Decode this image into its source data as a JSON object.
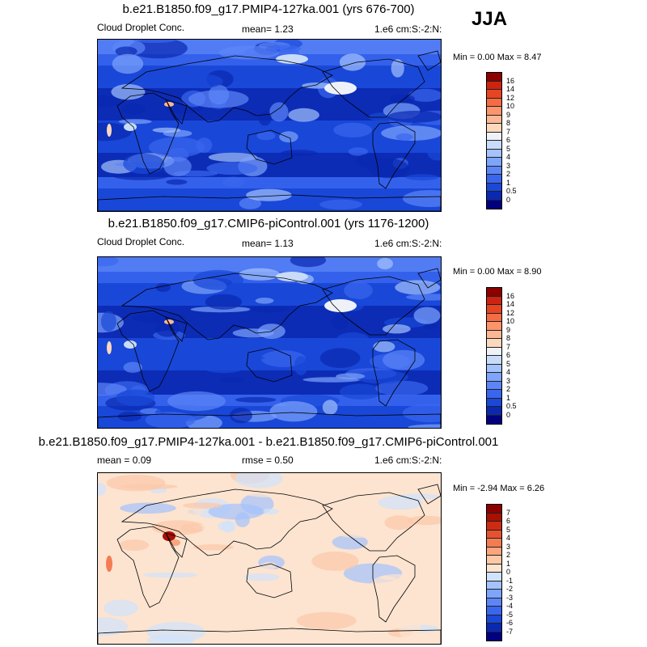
{
  "season": "JJA",
  "panels": [
    {
      "title": "b.e21.B1850.f09_g17.PMIP4-127ka.001 (yrs 676-700)",
      "left": "Cloud Droplet Conc.",
      "mean": "mean=   1.23",
      "units": "1.e6 cm:S:-2:N:",
      "minmax": "Min =   0.00 Max =   8.47",
      "kind": "abs",
      "seed": 7
    },
    {
      "title": "b.e21.B1850.f09_g17.CMIP6-piControl.001 (yrs 1176-1200)",
      "left": "Cloud Droplet Conc.",
      "mean": "mean=   1.13",
      "units": "1.e6 cm:S:-2:N:",
      "minmax": "Min =   0.00 Max =   8.90",
      "kind": "abs",
      "seed": 11
    },
    {
      "title": "b.e21.B1850.f09_g17.PMIP4-127ka.001 - b.e21.B1850.f09_g17.CMIP6-piControl.001",
      "left": "mean =   0.09",
      "mean": "rmse =   0.50",
      "units": "1.e6 cm:S:-2:N:",
      "minmax": "Min =  -2.94 Max =   6.26",
      "kind": "diff",
      "seed": 3
    }
  ],
  "chart_data": [
    {
      "type": "heatmap",
      "title": "b.e21.B1850.f09_g17.PMIP4-127ka.001 (yrs 676-700)",
      "variable": "Cloud Droplet Conc.",
      "units": "1.e6 cm:S:-2:N:",
      "mean": 1.23,
      "min": 0.0,
      "max": 8.47,
      "colorbar_levels": [
        0,
        0.5,
        1,
        2,
        3,
        4,
        5,
        6,
        7,
        8,
        9,
        10,
        12,
        14,
        16
      ],
      "colorbar_labels": [
        "16",
        "14",
        "12",
        "10",
        "9",
        "8",
        "7",
        "6",
        "5",
        "4",
        "3",
        "2",
        "1",
        "0.5",
        "0"
      ],
      "colors": [
        "#000080",
        "#0a28b0",
        "#1a48d8",
        "#3a66ee",
        "#5c86f8",
        "#7ea4fc",
        "#a4c2fc",
        "#c8dcfa",
        "#eef2f8",
        "#fcd8bc",
        "#fcb894",
        "#fc946c",
        "#f46c44",
        "#e64422",
        "#cc2410",
        "#8c0000"
      ]
    },
    {
      "type": "heatmap",
      "title": "b.e21.B1850.f09_g17.CMIP6-piControl.001 (yrs 1176-1200)",
      "variable": "Cloud Droplet Conc.",
      "units": "1.e6 cm:S:-2:N:",
      "mean": 1.13,
      "min": 0.0,
      "max": 8.9,
      "colorbar_levels": [
        0,
        0.5,
        1,
        2,
        3,
        4,
        5,
        6,
        7,
        8,
        9,
        10,
        12,
        14,
        16
      ],
      "colorbar_labels": [
        "16",
        "14",
        "12",
        "10",
        "9",
        "8",
        "7",
        "6",
        "5",
        "4",
        "3",
        "2",
        "1",
        "0.5",
        "0"
      ],
      "colors": [
        "#000080",
        "#0a28b0",
        "#1a48d8",
        "#3a66ee",
        "#5c86f8",
        "#7ea4fc",
        "#a4c2fc",
        "#c8dcfa",
        "#eef2f8",
        "#fcd8bc",
        "#fcb894",
        "#fc946c",
        "#f46c44",
        "#e64422",
        "#cc2410",
        "#8c0000"
      ]
    },
    {
      "type": "heatmap",
      "title": "b.e21.B1850.f09_g17.PMIP4-127ka.001 - b.e21.B1850.f09_g17.CMIP6-piControl.001",
      "units": "1.e6 cm:S:-2:N:",
      "mean": 0.09,
      "rmse": 0.5,
      "min": -2.94,
      "max": 6.26,
      "colorbar_levels": [
        -7,
        -6,
        -5,
        -4,
        -3,
        -2,
        -1,
        0,
        1,
        2,
        3,
        4,
        5,
        6,
        7
      ],
      "colorbar_labels": [
        "7",
        "6",
        "5",
        "4",
        "3",
        "2",
        "1",
        "0",
        "-1",
        "-2",
        "-3",
        "-4",
        "-5",
        "-6",
        "-7"
      ],
      "colors": [
        "#000080",
        "#0a28b0",
        "#1a48d8",
        "#3a66ee",
        "#5c86f8",
        "#7ea4fc",
        "#a4c2fc",
        "#d0e2fc",
        "#fce4d0",
        "#fcc8a8",
        "#fca47c",
        "#f47c52",
        "#e65230",
        "#cc2c12",
        "#a81004",
        "#8c0000"
      ]
    }
  ]
}
